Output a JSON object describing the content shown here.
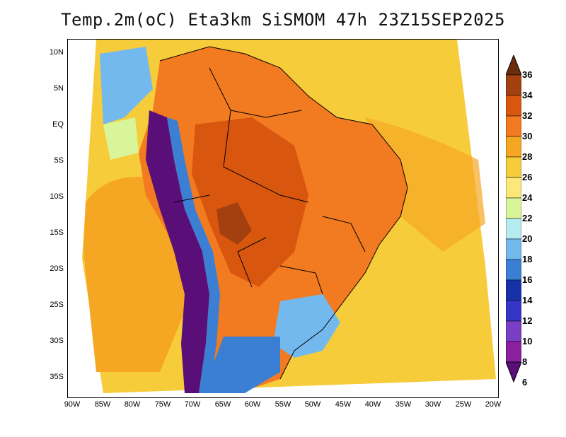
{
  "title": "Temp.2m(oC) Eta3km SiSMOM 47h 23Z15SEP2025",
  "y_labels": [
    "10N",
    "5N",
    "EQ",
    "5S",
    "10S",
    "15S",
    "20S",
    "25S",
    "30S",
    "35S"
  ],
  "x_labels": [
    "90W",
    "85W",
    "80W",
    "75W",
    "70W",
    "65W",
    "60W",
    "55W",
    "50W",
    "45W",
    "40W",
    "35W",
    "30W",
    "25W",
    "20W"
  ],
  "colorbar": {
    "labels": [
      "36",
      "34",
      "32",
      "30",
      "28",
      "26",
      "24",
      "22",
      "20",
      "18",
      "16",
      "14",
      "12",
      "10",
      "8",
      "6"
    ],
    "colors": [
      "#6a2c0a",
      "#a3400f",
      "#d9560f",
      "#f27a20",
      "#f5a623",
      "#f7cc3a",
      "#fbe77a",
      "#d9f59a",
      "#b6ecf0",
      "#74b9ee",
      "#3b7fd4",
      "#1732a8",
      "#3535c8",
      "#7a3ec4",
      "#8a1fa0",
      "#5a0f78"
    ]
  },
  "colors": {
    "ocean_warm": "#f7cc3a",
    "ocean_orange": "#f5a623",
    "land_hot": "#f27a20",
    "land_hotter": "#d9560f",
    "andes_cold": "#5a0f78",
    "south_cool": "#74b9ee",
    "border": "#000000"
  }
}
